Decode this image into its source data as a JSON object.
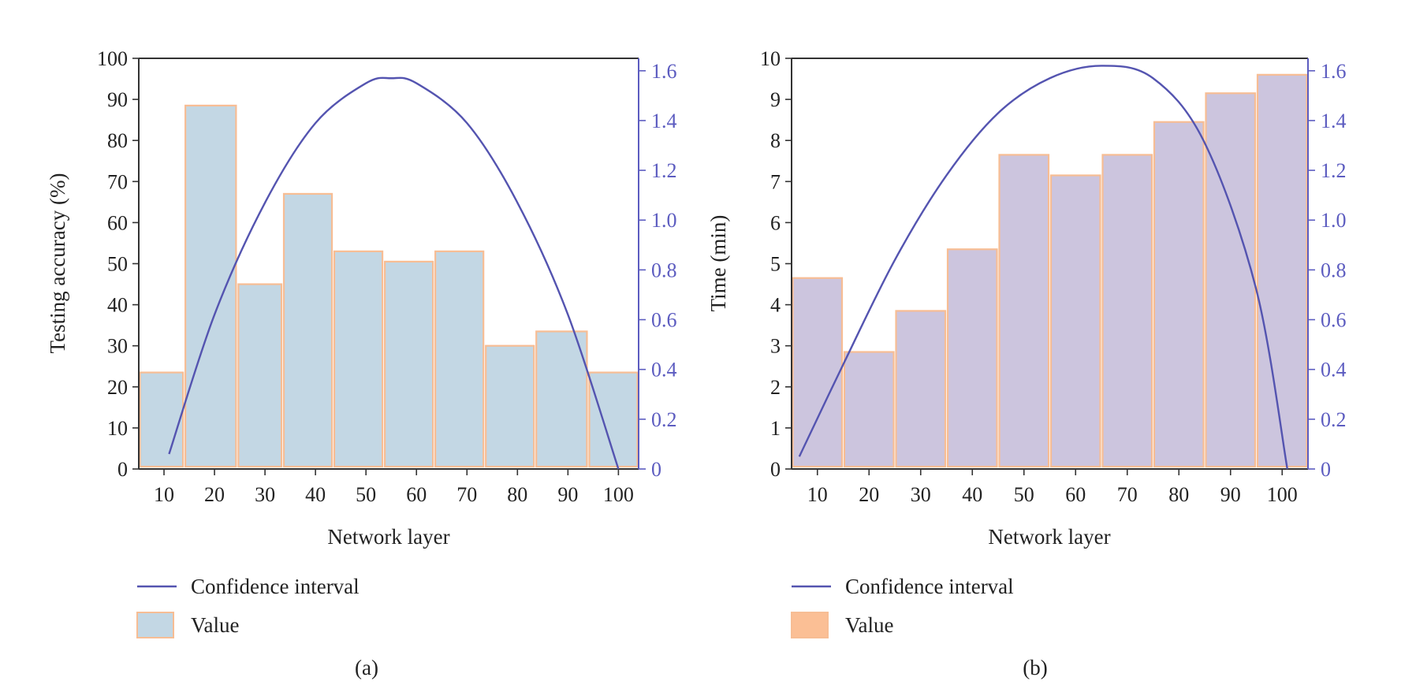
{
  "colors": {
    "bar_fill_a": "#c3d7e4",
    "bar_fill_b": "#ccc5de",
    "bar_edge": "#f7bd94",
    "legend_value_b": "#fbbf95",
    "curve": "#5454b0",
    "right_axis": "#5c5cc0",
    "text": "#222222"
  },
  "chart_data": [
    {
      "type": "bar",
      "panel_label": "(a)",
      "title": "",
      "xlabel": "Network layer",
      "ylabel": "Testing accuracy (%)",
      "y2label": "",
      "x_ticks": [
        "10",
        "20",
        "30",
        "40",
        "50",
        "60",
        "70",
        "80",
        "90",
        "100"
      ],
      "ylim": [
        0,
        100
      ],
      "y_ticks": [
        "0",
        "10",
        "20",
        "30",
        "40",
        "50",
        "60",
        "70",
        "80",
        "90",
        "100"
      ],
      "y2lim": [
        0,
        1.65
      ],
      "y2_ticks": [
        "0",
        "0.2",
        "0.4",
        "0.6",
        "0.8",
        "1.0",
        "1.2",
        "1.4",
        "1.6"
      ],
      "grid": false,
      "legend_position": "bottom-left",
      "series": [
        {
          "name": "Value",
          "kind": "bar",
          "axis": "left",
          "bins": [
            {
              "x0": 5,
              "x1": 14,
              "value": 23.5
            },
            {
              "x0": 14,
              "x1": 24.5,
              "value": 88.5
            },
            {
              "x0": 24.5,
              "x1": 33.5,
              "value": 45
            },
            {
              "x0": 33.5,
              "x1": 43.5,
              "value": 67
            },
            {
              "x0": 43.5,
              "x1": 53.5,
              "value": 53
            },
            {
              "x0": 53.5,
              "x1": 63.5,
              "value": 50.5
            },
            {
              "x0": 63.5,
              "x1": 73.5,
              "value": 53
            },
            {
              "x0": 73.5,
              "x1": 83.5,
              "value": 30
            },
            {
              "x0": 83.5,
              "x1": 94,
              "value": 33.5
            },
            {
              "x0": 94,
              "x1": 104,
              "value": 23.5
            }
          ]
        },
        {
          "name": "Confidence interval",
          "kind": "line",
          "axis": "right",
          "x": [
            11,
            20,
            30,
            40,
            50,
            55,
            60,
            70,
            80,
            90,
            100
          ],
          "y": [
            0.06,
            0.62,
            1.07,
            1.39,
            1.55,
            1.57,
            1.55,
            1.39,
            1.07,
            0.62,
            0
          ]
        }
      ]
    },
    {
      "type": "bar",
      "panel_label": "(b)",
      "title": "",
      "xlabel": "Network layer",
      "ylabel": "Time (min)",
      "y2label": "",
      "x_ticks": [
        "10",
        "20",
        "30",
        "40",
        "50",
        "60",
        "70",
        "80",
        "90",
        "100"
      ],
      "ylim": [
        0,
        10
      ],
      "y_ticks": [
        "0",
        "1",
        "2",
        "3",
        "4",
        "5",
        "6",
        "7",
        "8",
        "9",
        "10"
      ],
      "y2lim": [
        0,
        1.65
      ],
      "y2_ticks": [
        "0",
        "0.2",
        "0.4",
        "0.6",
        "0.8",
        "1.0",
        "1.2",
        "1.4",
        "1.6"
      ],
      "grid": false,
      "legend_position": "bottom-left",
      "series": [
        {
          "name": "Value",
          "kind": "bar",
          "axis": "left",
          "bins": [
            {
              "x0": 5,
              "x1": 15,
              "value": 4.65
            },
            {
              "x0": 15,
              "x1": 25,
              "value": 2.85
            },
            {
              "x0": 25,
              "x1": 35,
              "value": 3.85
            },
            {
              "x0": 35,
              "x1": 45,
              "value": 5.35
            },
            {
              "x0": 45,
              "x1": 55,
              "value": 7.65
            },
            {
              "x0": 55,
              "x1": 65,
              "value": 7.15
            },
            {
              "x0": 65,
              "x1": 75,
              "value": 7.65
            },
            {
              "x0": 75,
              "x1": 85,
              "value": 8.45
            },
            {
              "x0": 85,
              "x1": 95,
              "value": 9.15
            },
            {
              "x0": 95,
              "x1": 105,
              "value": 9.6
            }
          ]
        },
        {
          "name": "Confidence interval",
          "kind": "line",
          "axis": "right",
          "x": [
            6.5,
            15,
            25,
            35,
            45,
            55,
            65,
            75,
            85,
            95,
            101
          ],
          "y": [
            0.05,
            0.42,
            0.84,
            1.18,
            1.43,
            1.57,
            1.62,
            1.57,
            1.31,
            0.72,
            0
          ]
        }
      ]
    }
  ]
}
